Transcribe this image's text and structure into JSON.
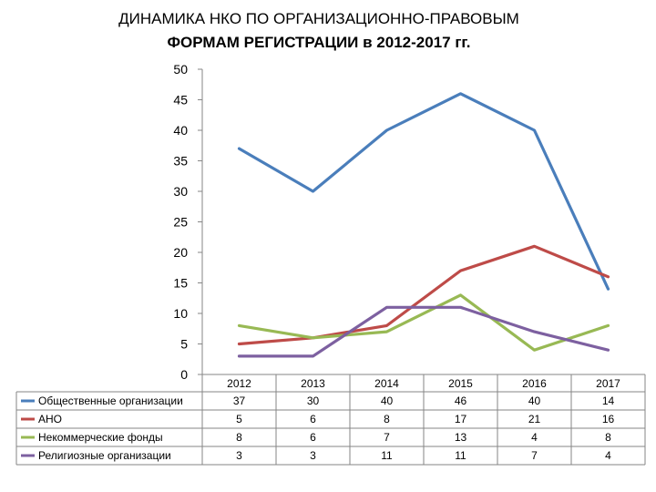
{
  "chart_data": {
    "type": "line",
    "title": [
      "ДИНАМИКА НКО ПО ОРГАНИЗАЦИОННО-ПРАВОВЫМ",
      "ФОРМАМ РЕГИСТРАЦИИ в 2012-2017 гг."
    ],
    "categories": [
      "2012",
      "2013",
      "2014",
      "2015",
      "2016",
      "2017"
    ],
    "y_ticks": [
      "0",
      "5",
      "10",
      "15",
      "20",
      "25",
      "30",
      "35",
      "40",
      "45",
      "50"
    ],
    "ylim": [
      0,
      50
    ],
    "grid": false,
    "legend": "data-table-left",
    "series": [
      {
        "name": "Общественные организации",
        "color": "#4a7ebb",
        "values": [
          37,
          30,
          40,
          46,
          40,
          14
        ]
      },
      {
        "name": "АНО",
        "color": "#be4b48",
        "values": [
          5,
          6,
          8,
          17,
          21,
          16
        ]
      },
      {
        "name": "Некоммерческие фонды",
        "color": "#98b954",
        "values": [
          8,
          6,
          7,
          13,
          4,
          8
        ]
      },
      {
        "name": "Религиозные организации",
        "color": "#7d60a0",
        "values": [
          3,
          3,
          11,
          11,
          7,
          4
        ]
      }
    ]
  }
}
